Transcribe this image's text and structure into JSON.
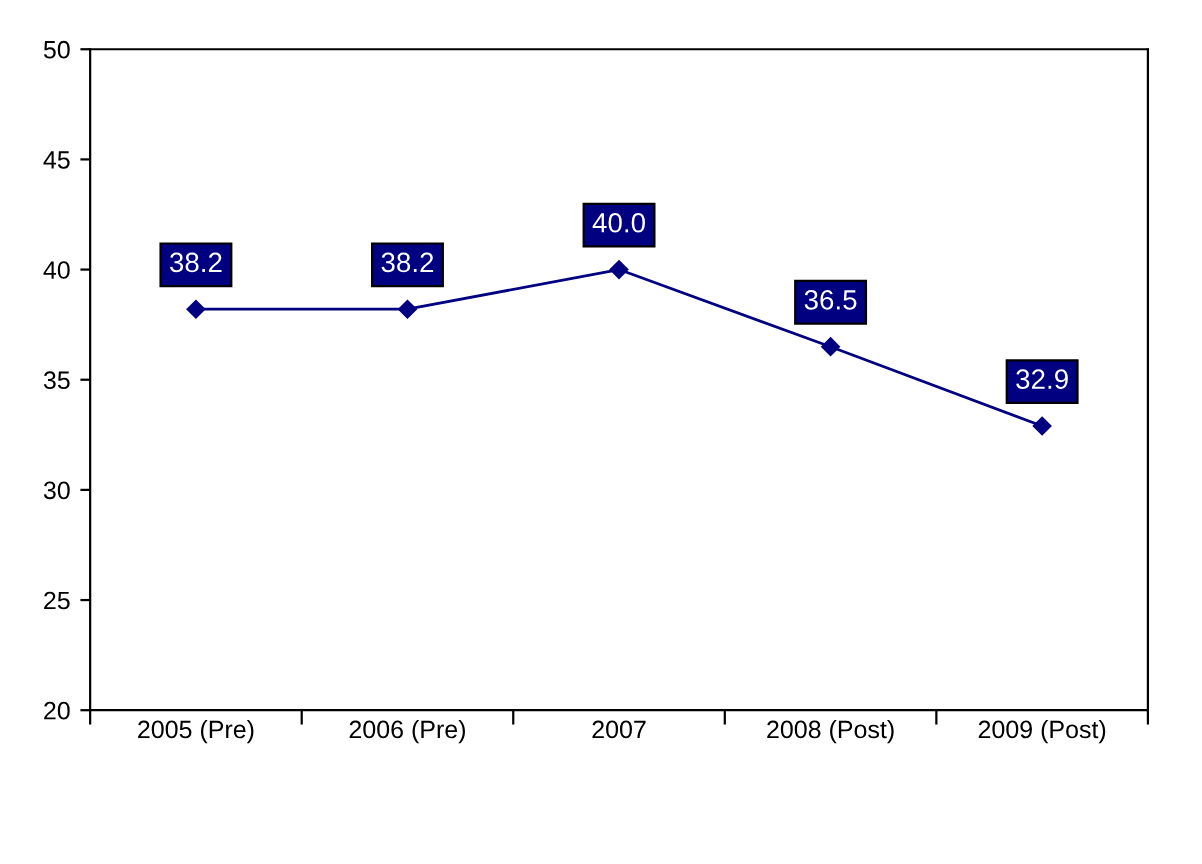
{
  "chart_data": {
    "type": "line",
    "categories": [
      "2005 (Pre)",
      "2006 (Pre)",
      "2007",
      "2008 (Post)",
      "2009 (Post)"
    ],
    "series": [
      {
        "color": "#000080",
        "values": [
          38.2,
          38.2,
          40.0,
          36.5,
          32.9
        ],
        "value_labels": [
          "38.2",
          "38.2",
          "40.0",
          "36.5",
          "32.9"
        ]
      }
    ],
    "ylim": [
      20,
      50
    ],
    "yticks": [
      20,
      25,
      30,
      35,
      40,
      45,
      50
    ],
    "marker": "diamond",
    "line_style": "solid",
    "grid": false,
    "legend": false
  }
}
